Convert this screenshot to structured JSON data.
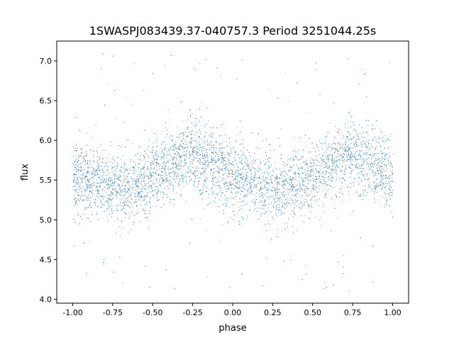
{
  "chart_data": {
    "type": "scatter",
    "title": "1SWASPJ083439.37-040757.3 Period 3251044.25s",
    "xlabel": "phase",
    "ylabel": "flux",
    "xlim": [
      -1.1,
      1.1
    ],
    "ylim": [
      3.95,
      7.25
    ],
    "xticks": [
      "-1.00",
      "-0.75",
      "-0.50",
      "-0.25",
      "0.00",
      "0.25",
      "0.50",
      "0.75",
      "1.00"
    ],
    "xtick_values": [
      -1.0,
      -0.75,
      -0.5,
      -0.25,
      0.0,
      0.25,
      0.5,
      0.75,
      1.0
    ],
    "yticks": [
      "4.0",
      "4.5",
      "5.0",
      "5.5",
      "6.0",
      "6.5",
      "7.0"
    ],
    "ytick_values": [
      4.0,
      4.5,
      5.0,
      5.5,
      6.0,
      6.5,
      7.0
    ],
    "grid": false,
    "marker_color": "#1f77b4",
    "series": [
      {
        "x": [
          -1.0,
          -0.9,
          -0.8,
          -0.7,
          -0.6,
          -0.5,
          -0.4,
          -0.3,
          -0.25,
          -0.2,
          -0.1,
          0.0,
          0.1,
          0.2,
          0.3,
          0.4,
          0.5,
          0.6,
          0.7,
          0.75,
          0.8,
          0.9,
          1.0
        ],
        "y": [
          5.55,
          5.5,
          5.45,
          5.4,
          5.45,
          5.55,
          5.65,
          5.8,
          5.85,
          5.75,
          5.65,
          5.55,
          5.45,
          5.4,
          5.4,
          5.45,
          5.55,
          5.65,
          5.8,
          5.85,
          5.75,
          5.65,
          5.55
        ]
      }
    ]
  }
}
